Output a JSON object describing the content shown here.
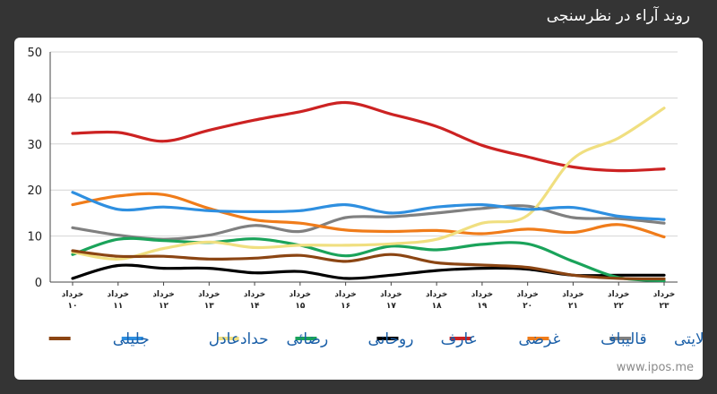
{
  "header": {
    "title": "روند آراء در نظرسنجی"
  },
  "watermark": "www.ipos.me",
  "chart_data": {
    "type": "line",
    "title": "",
    "xlabel": "",
    "ylabel": "",
    "ylim": [
      0,
      50
    ],
    "yticks": [
      0,
      10,
      20,
      30,
      40,
      50
    ],
    "grid": true,
    "legend_position": "bottom",
    "categories": [
      [
        "خرداد",
        "۱۰"
      ],
      [
        "خرداد",
        "۱۱"
      ],
      [
        "خرداد",
        "۱۲"
      ],
      [
        "خرداد",
        "۱۳"
      ],
      [
        "خرداد",
        "۱۴"
      ],
      [
        "خرداد",
        "۱۵"
      ],
      [
        "خرداد",
        "۱۶"
      ],
      [
        "خرداد",
        "۱۷"
      ],
      [
        "خرداد",
        "۱۸"
      ],
      [
        "خرداد",
        "۱۹"
      ],
      [
        "خرداد",
        "۲۰"
      ],
      [
        "خرداد",
        "۲۱"
      ],
      [
        "خرداد",
        "۲۲"
      ],
      [
        "خرداد",
        "۲۳"
      ]
    ],
    "series": [
      {
        "name": "ولایتی",
        "color": "#808080",
        "values": [
          11.8,
          10.2,
          9.3,
          10.2,
          12.3,
          11.0,
          14.0,
          14.2,
          15.0,
          16.0,
          16.5,
          14.0,
          13.8,
          12.8
        ]
      },
      {
        "name": "قالیباف",
        "color": "#f07c1a",
        "values": [
          16.8,
          18.7,
          19.0,
          16.0,
          13.5,
          12.8,
          11.3,
          11.0,
          11.2,
          10.5,
          11.5,
          10.8,
          12.5,
          9.8
        ]
      },
      {
        "name": "غرضی",
        "color": "#cc2222",
        "values": [
          32.3,
          32.5,
          30.6,
          33.0,
          35.2,
          37.0,
          39.0,
          36.5,
          33.8,
          29.7,
          27.2,
          25.0,
          24.2,
          24.6
        ]
      },
      {
        "name": "عارف",
        "color": "#000000",
        "values": [
          0.8,
          3.6,
          3.0,
          3.0,
          2.0,
          2.3,
          0.8,
          1.5,
          2.5,
          3.0,
          2.8,
          1.5,
          1.5,
          1.5
        ]
      },
      {
        "name": "روحانی",
        "color": "#1aa35a",
        "values": [
          6.0,
          9.3,
          9.0,
          8.6,
          9.4,
          8.0,
          5.7,
          7.8,
          7.0,
          8.2,
          8.3,
          4.5,
          1.0,
          0.3
        ]
      },
      {
        "name": "رضائی",
        "color": "#f0df80",
        "values": [
          6.5,
          5.0,
          7.3,
          8.7,
          7.5,
          8.0,
          8.0,
          8.3,
          9.3,
          12.8,
          14.5,
          26.8,
          31.3,
          37.8
        ]
      },
      {
        "name": "حدادعادل",
        "color": "#2e8fe0",
        "values": [
          19.5,
          15.8,
          16.3,
          15.5,
          15.3,
          15.5,
          16.8,
          15.0,
          16.3,
          16.8,
          15.8,
          16.2,
          14.3,
          13.6
        ]
      },
      {
        "name": "جلیلی",
        "color": "#8b4513",
        "values": [
          6.8,
          5.6,
          5.6,
          5.0,
          5.2,
          5.8,
          4.5,
          6.0,
          4.2,
          3.7,
          3.2,
          1.5,
          0.8,
          0.7
        ]
      }
    ]
  }
}
